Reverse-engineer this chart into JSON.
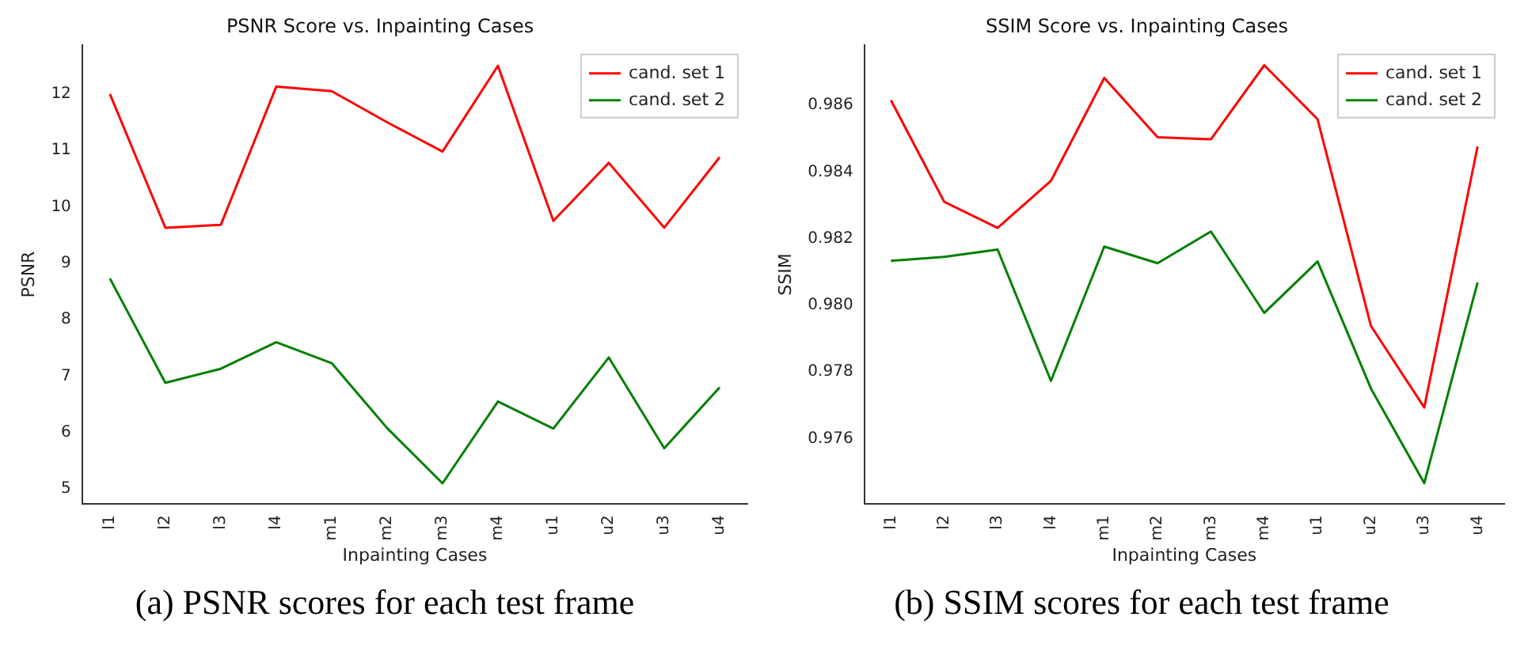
{
  "chart_data": [
    {
      "type": "line",
      "title": "PSNR Score vs. Inpainting Cases",
      "xlabel": "Inpainting Cases",
      "ylabel": "PSNR",
      "categories": [
        "l1",
        "l2",
        "l3",
        "l4",
        "m1",
        "m2",
        "m3",
        "m4",
        "u1",
        "u2",
        "u3",
        "u4"
      ],
      "series": [
        {
          "name": "cand. set 1",
          "color": "#ff0000",
          "values": [
            12.0,
            9.63,
            9.68,
            12.13,
            12.05,
            11.5,
            10.98,
            12.5,
            9.75,
            10.78,
            9.63,
            10.88
          ]
        },
        {
          "name": "cand. set 2",
          "color": "#008000",
          "values": [
            8.73,
            6.88,
            7.13,
            7.6,
            7.23,
            6.08,
            5.1,
            6.55,
            6.07,
            7.33,
            5.72,
            6.8
          ]
        }
      ],
      "ylim": [
        4.73,
        12.87
      ],
      "yticks": [
        5,
        6,
        7,
        8,
        9,
        10,
        11,
        12
      ],
      "grid": false,
      "legend": "top right",
      "marker": "none",
      "line_style": "solid",
      "annotations": [
        "(a) PSNR scores for each test frame"
      ]
    },
    {
      "type": "line",
      "title": "SSIM Score vs. Inpainting Cases",
      "xlabel": "Inpainting Cases",
      "ylabel": "SSIM",
      "categories": [
        "l1",
        "l2",
        "l3",
        "l4",
        "m1",
        "m2",
        "m3",
        "m4",
        "u1",
        "u2",
        "u3",
        "u4"
      ],
      "series": [
        {
          "name": "cand. set 1",
          "color": "#ff0000",
          "values": [
            0.98615,
            0.9831,
            0.98232,
            0.98373,
            0.98682,
            0.98504,
            0.98498,
            0.9872,
            0.98558,
            0.97938,
            0.97693,
            0.98476
          ]
        },
        {
          "name": "cand. set 2",
          "color": "#008000",
          "values": [
            0.98133,
            0.98145,
            0.98167,
            0.97773,
            0.98176,
            0.98126,
            0.98221,
            0.97977,
            0.98131,
            0.9775,
            0.97466,
            0.98068
          ]
        }
      ],
      "ylim": [
        0.97403,
        0.98781
      ],
      "yticks": [
        {
          "value": 0.976,
          "label": "0.976"
        },
        {
          "value": 0.978,
          "label": "0.978"
        },
        {
          "value": 0.98,
          "label": "0.980"
        },
        {
          "value": 0.982,
          "label": "0.982"
        },
        {
          "value": 0.984,
          "label": "0.984"
        },
        {
          "value": 0.986,
          "label": "0.986"
        }
      ],
      "grid": false,
      "legend": "top right",
      "marker": "none",
      "line_style": "solid",
      "annotations": [
        "(b) SSIM scores for each test frame"
      ]
    }
  ]
}
